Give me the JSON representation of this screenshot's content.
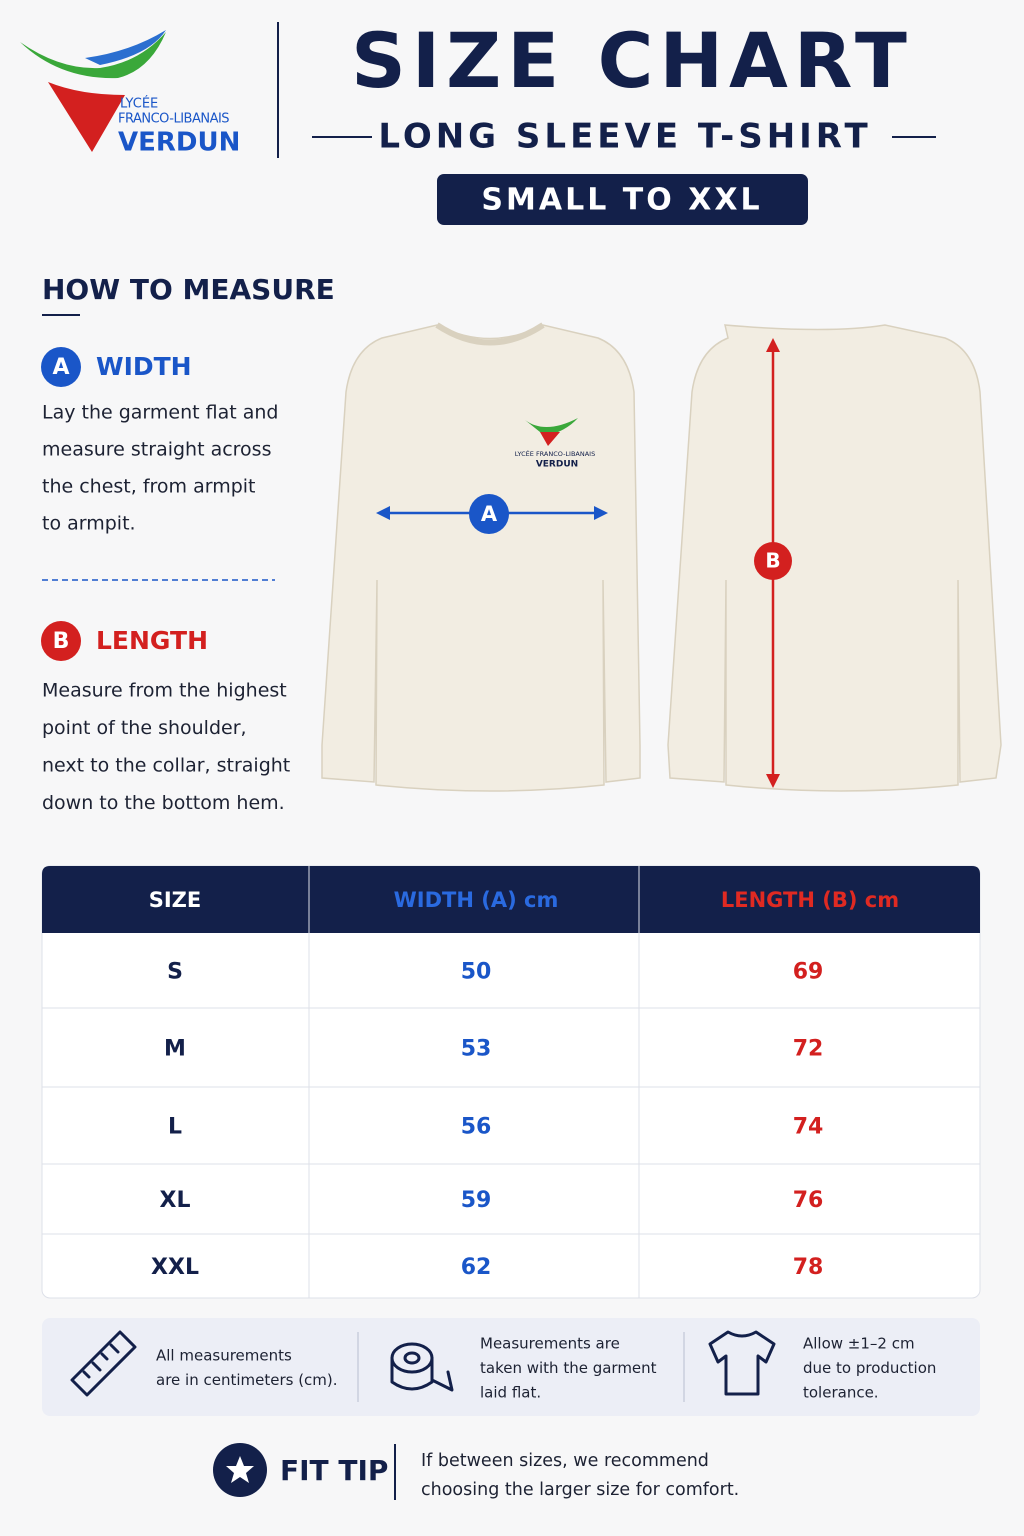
{
  "logo": {
    "line1": "LYCÉE",
    "line2": "FRANCO-LIBANAIS",
    "line3": "VERDUN"
  },
  "header": {
    "title": "SIZE CHART",
    "subtitle": "LONG SLEEVE T-SHIRT",
    "range": "SMALL TO XXL"
  },
  "how_to": {
    "title": "HOW TO MEASURE",
    "width": {
      "badge": "A",
      "label": "WIDTH",
      "lines": [
        "Lay the garment flat and",
        "measure straight across",
        "the chest, from armpit",
        "to armpit."
      ]
    },
    "length": {
      "badge": "B",
      "label": "LENGTH",
      "lines": [
        "Measure from the highest",
        "point of the shoulder,",
        "next to the collar, straight",
        "down to the bottom hem."
      ]
    }
  },
  "shirt_logo": {
    "line1": "LYCÉE FRANCO-LIBANAIS",
    "line2": "VERDUN"
  },
  "table": {
    "headers": [
      "SIZE",
      "WIDTH (A) cm",
      "LENGTH (B) cm"
    ],
    "rows": [
      [
        "S",
        50,
        69
      ],
      [
        "M",
        53,
        72
      ],
      [
        "L",
        56,
        74
      ],
      [
        "XL",
        59,
        76
      ],
      [
        "XXL",
        62,
        78
      ]
    ]
  },
  "notes": [
    {
      "lines": [
        "All measurements",
        "are in centimeters (cm)."
      ]
    },
    {
      "lines": [
        "Measurements are",
        "taken with the garment",
        "laid flat."
      ]
    },
    {
      "lines": [
        "Allow ±1–2 cm",
        "due to production",
        "tolerance."
      ]
    }
  ],
  "fit_tip": {
    "label": "FIT TIP",
    "lines": [
      "If between sizes, we recommend",
      "choosing the larger size for comfort."
    ]
  }
}
